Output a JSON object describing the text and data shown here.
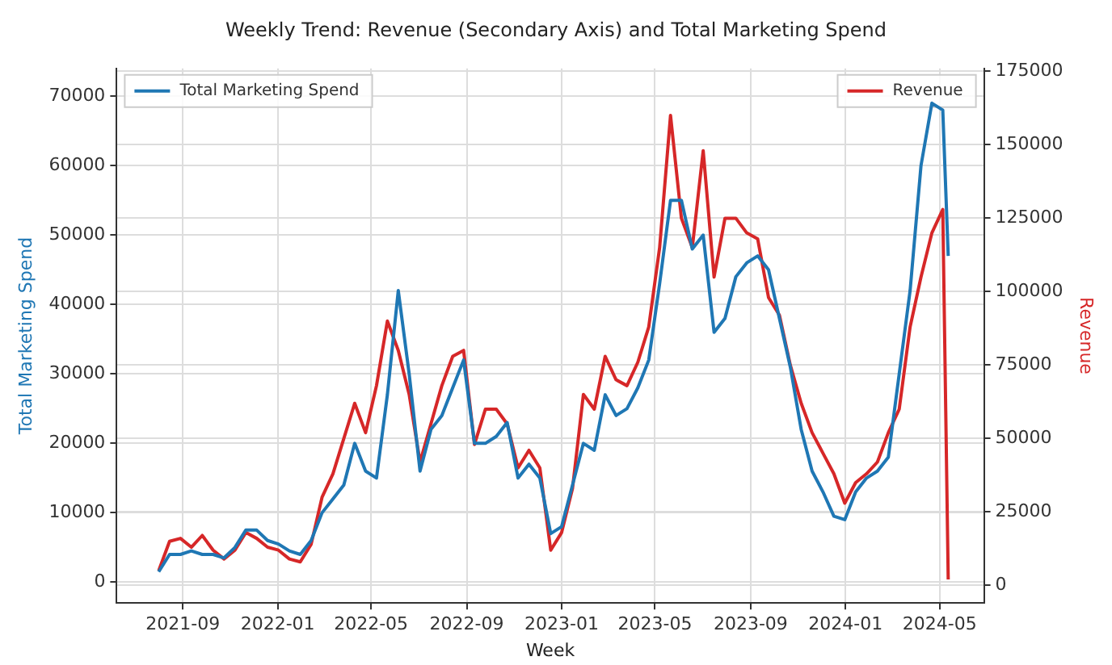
{
  "chart_data": {
    "type": "line",
    "title": "Weekly Trend: Revenue (Secondary Axis) and Total Marketing Spend",
    "xlabel": "Week",
    "ylabel": "Total Marketing Spend",
    "y2label": "Revenue",
    "x": [
      "2021-08-01",
      "2021-08-15",
      "2021-08-29",
      "2021-09-12",
      "2021-09-26",
      "2021-10-10",
      "2021-10-24",
      "2021-11-07",
      "2021-11-21",
      "2021-12-05",
      "2021-12-19",
      "2022-01-02",
      "2022-01-16",
      "2022-01-30",
      "2022-02-13",
      "2022-02-27",
      "2022-03-13",
      "2022-03-27",
      "2022-04-10",
      "2022-04-24",
      "2022-05-08",
      "2022-05-22",
      "2022-06-05",
      "2022-06-19",
      "2022-07-03",
      "2022-07-17",
      "2022-07-31",
      "2022-08-14",
      "2022-08-28",
      "2022-09-11",
      "2022-09-25",
      "2022-10-09",
      "2022-10-23",
      "2022-11-06",
      "2022-11-20",
      "2022-12-04",
      "2022-12-18",
      "2023-01-01",
      "2023-01-15",
      "2023-01-29",
      "2023-02-12",
      "2023-02-26",
      "2023-03-12",
      "2023-03-26",
      "2023-04-09",
      "2023-04-23",
      "2023-05-07",
      "2023-05-21",
      "2023-06-04",
      "2023-06-18",
      "2023-07-02",
      "2023-07-16",
      "2023-07-30",
      "2023-08-13",
      "2023-08-27",
      "2023-09-10",
      "2023-09-24",
      "2023-10-08",
      "2023-10-22",
      "2023-11-05",
      "2023-11-19",
      "2023-12-03",
      "2023-12-17",
      "2023-12-31",
      "2024-01-14",
      "2024-01-28",
      "2024-02-11",
      "2024-02-25",
      "2024-03-10",
      "2024-03-24",
      "2024-04-07",
      "2024-04-21",
      "2024-05-05",
      "2024-05-12"
    ],
    "series": [
      {
        "name": "Total Marketing Spend",
        "color": "#1f77b4",
        "values": [
          1500,
          4000,
          4000,
          4500,
          4000,
          4000,
          3500,
          5000,
          7500,
          7500,
          6000,
          5500,
          4500,
          4000,
          6000,
          10000,
          12000,
          14000,
          20000,
          16000,
          15000,
          27000,
          42000,
          30000,
          16000,
          22000,
          24000,
          28000,
          32000,
          20000,
          20000,
          21000,
          23000,
          15000,
          17000,
          15000,
          7000,
          8000,
          14000,
          20000,
          19000,
          27000,
          24000,
          25000,
          28000,
          32000,
          43000,
          55000,
          55000,
          48000,
          50000,
          36000,
          38000,
          44000,
          46000,
          47000,
          45000,
          38000,
          31000,
          22000,
          16000,
          13000,
          9500,
          9000,
          13000,
          15000,
          16000,
          18000,
          30000,
          42000,
          60000,
          69000,
          68000,
          47000
        ]
      },
      {
        "name": "Revenue",
        "color": "#d62728",
        "axis": "y2",
        "values": [
          5000,
          15000,
          16000,
          13000,
          17000,
          12000,
          9000,
          12000,
          18000,
          16000,
          13000,
          12000,
          9000,
          8000,
          14000,
          30000,
          38000,
          50000,
          62000,
          52000,
          68000,
          90000,
          80000,
          65000,
          42000,
          55000,
          68000,
          78000,
          80000,
          48000,
          60000,
          60000,
          55000,
          40000,
          46000,
          40000,
          12000,
          18000,
          33000,
          65000,
          60000,
          78000,
          70000,
          68000,
          76000,
          88000,
          115000,
          160000,
          125000,
          115000,
          148000,
          105000,
          125000,
          125000,
          120000,
          118000,
          98000,
          92000,
          75000,
          62000,
          52000,
          45000,
          38000,
          28000,
          35000,
          38000,
          42000,
          52000,
          60000,
          88000,
          105000,
          120000,
          128000,
          2000
        ]
      }
    ],
    "xlim": [
      "2021-06-08",
      "2024-06-27"
    ],
    "xticks": [
      {
        "value": "2021-09-01",
        "label": "2021-09"
      },
      {
        "value": "2022-01-01",
        "label": "2022-01"
      },
      {
        "value": "2022-05-01",
        "label": "2022-05"
      },
      {
        "value": "2022-09-01",
        "label": "2022-09"
      },
      {
        "value": "2023-01-01",
        "label": "2023-01"
      },
      {
        "value": "2023-05-01",
        "label": "2023-05"
      },
      {
        "value": "2023-09-01",
        "label": "2023-09"
      },
      {
        "value": "2024-01-01",
        "label": "2024-01"
      },
      {
        "value": "2024-05-01",
        "label": "2024-05"
      }
    ],
    "ylim": [
      -3000,
      74000
    ],
    "yticks": [
      0,
      10000,
      20000,
      30000,
      40000,
      50000,
      60000,
      70000
    ],
    "y2lim": [
      -6000,
      176000
    ],
    "y2ticks": [
      0,
      25000,
      50000,
      75000,
      100000,
      125000,
      150000,
      175000
    ],
    "grid": true,
    "legend": "top",
    "marker": "none",
    "line_style": "solid"
  }
}
